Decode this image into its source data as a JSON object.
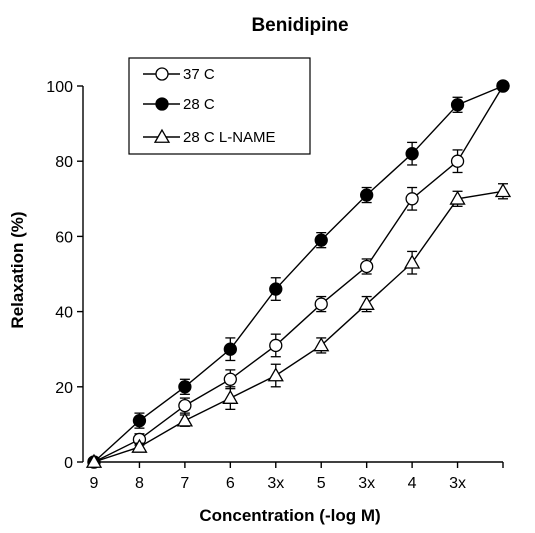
{
  "chart_data": {
    "type": "line",
    "title": "Benidipine",
    "xlabel": "Concentration (-log M)",
    "ylabel": "Relaxation (%)",
    "x_tick_labels": [
      "9",
      "8",
      "7",
      "6",
      "3x",
      "5",
      "3x",
      "4",
      "3x",
      ""
    ],
    "y_ticks": [
      0,
      20,
      40,
      60,
      80,
      100
    ],
    "ylim": [
      0,
      100
    ],
    "grid": false,
    "legend_position": "top-left",
    "series": [
      {
        "name": "37 C",
        "marker": "open-circle",
        "values": [
          0,
          6,
          15,
          22,
          31,
          42,
          52,
          70,
          80,
          100
        ],
        "errors": [
          0,
          1.5,
          2,
          2.5,
          3,
          2,
          2,
          3,
          3,
          0
        ]
      },
      {
        "name": "28 C",
        "marker": "filled-circle",
        "values": [
          0,
          11,
          20,
          30,
          46,
          59,
          71,
          82,
          95,
          100
        ],
        "errors": [
          0,
          2,
          2,
          3,
          3,
          2,
          2,
          3,
          2,
          0
        ]
      },
      {
        "name": "28 C L-NAME",
        "marker": "open-triangle",
        "values": [
          0,
          4,
          11,
          17,
          23,
          31,
          42,
          53,
          70,
          72
        ],
        "errors": [
          0,
          1,
          1.5,
          3,
          3,
          2,
          2,
          3,
          2,
          2
        ]
      }
    ]
  }
}
